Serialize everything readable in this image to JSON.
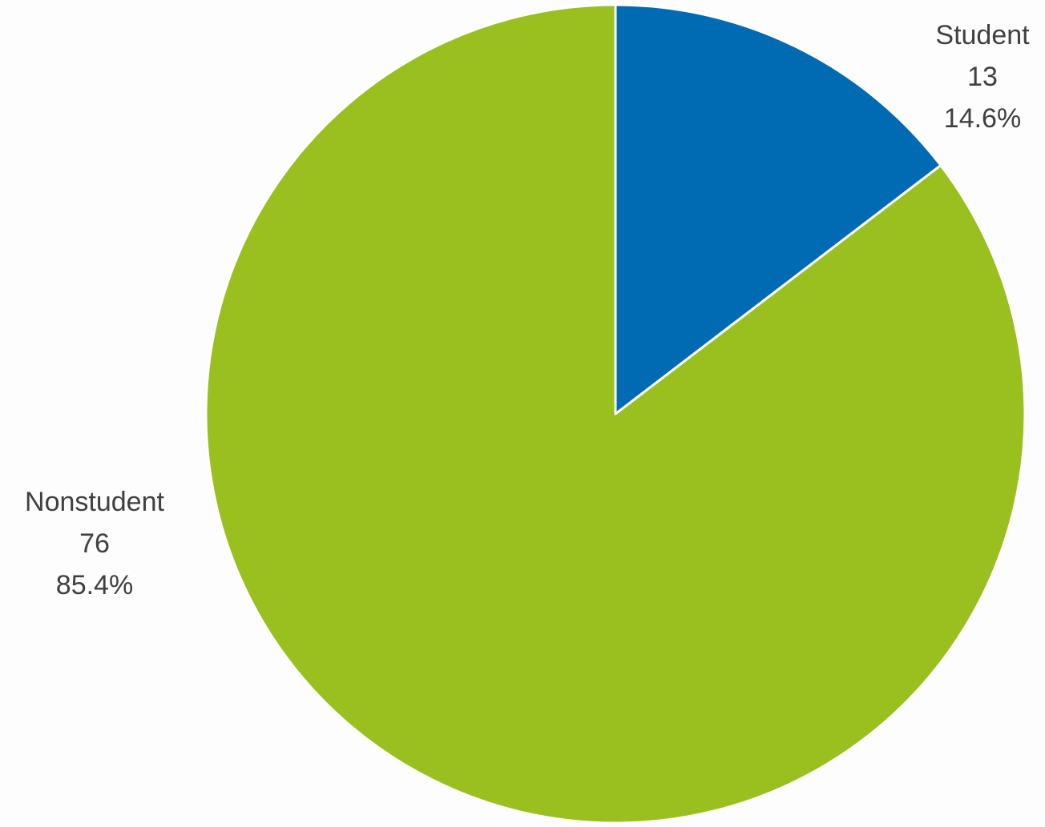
{
  "chart_data": {
    "type": "pie",
    "title": "",
    "start_angle_deg": 0,
    "direction": "clockwise",
    "slices": [
      {
        "label": "Student",
        "value": 13,
        "percent_label": "14.6%",
        "color": "#006bb2"
      },
      {
        "label": "Nonstudent",
        "value": 76,
        "percent_label": "85.4%",
        "color": "#99c01f"
      }
    ],
    "slice_border_color": "#ffffff",
    "label_color": "#404040",
    "background": "#fdfdfd"
  }
}
